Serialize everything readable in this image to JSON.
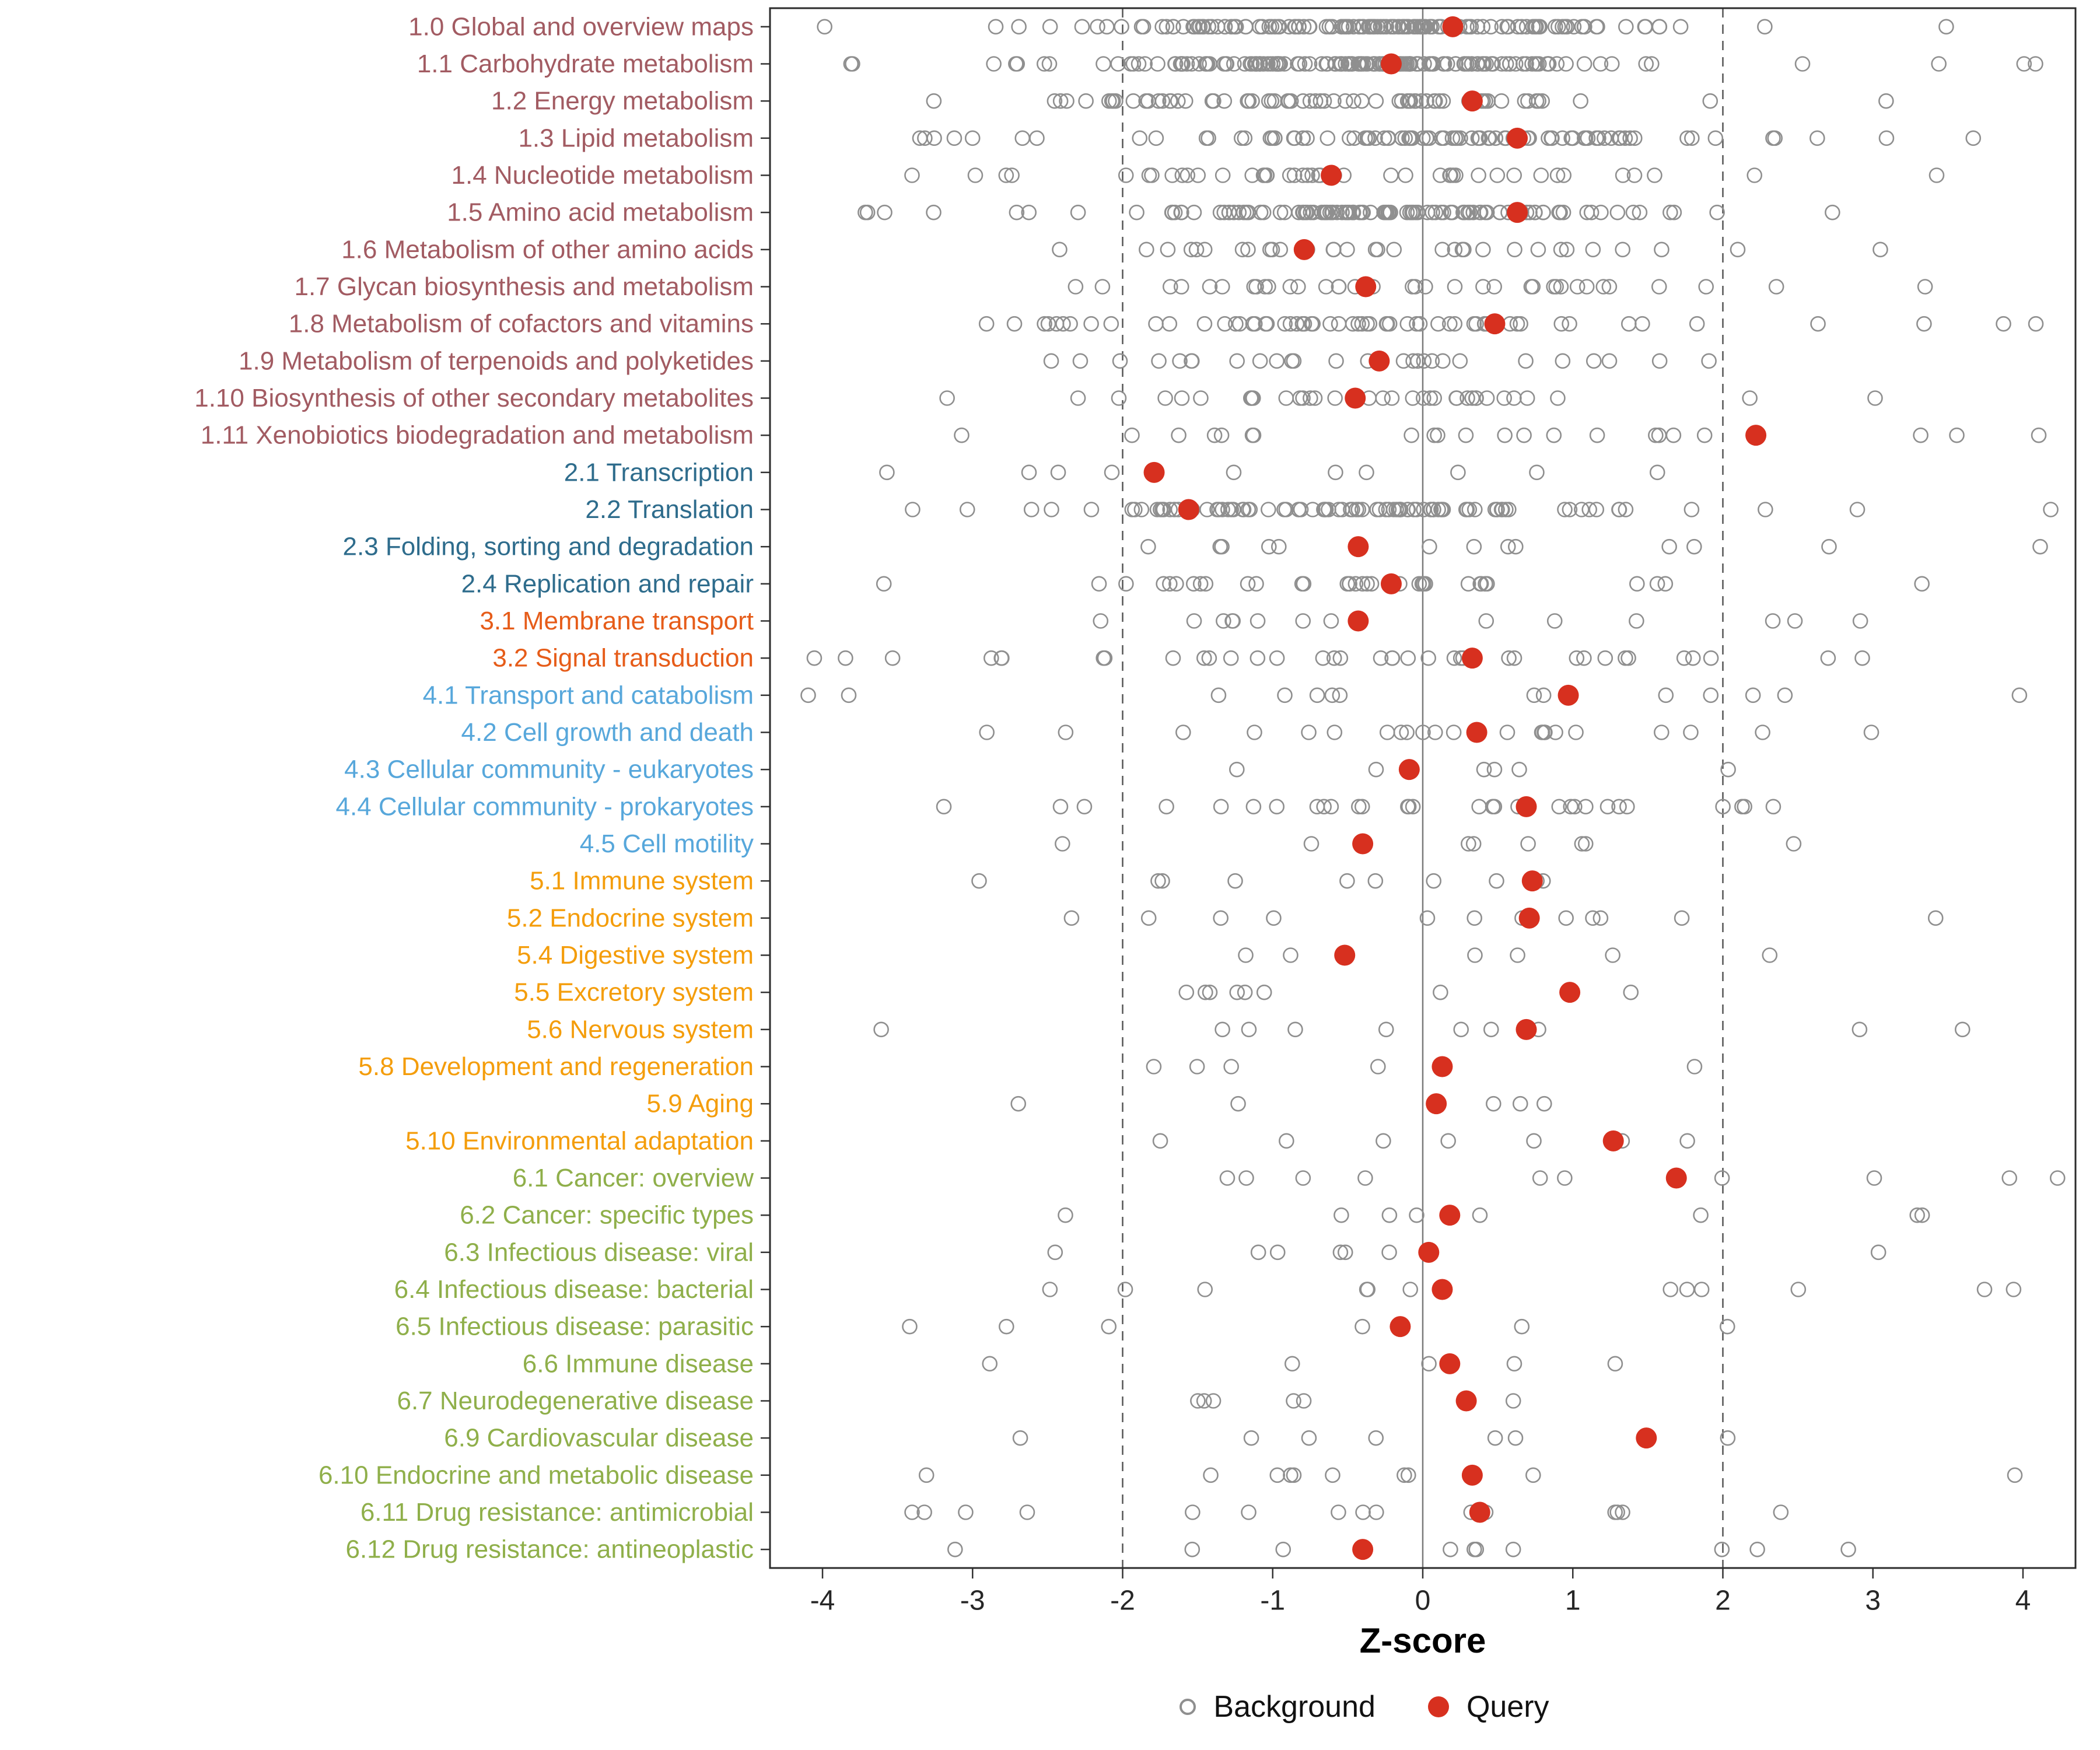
{
  "colors": {
    "query": "#D7301F",
    "background": "#8F8F8F",
    "axis_text": "#262626",
    "panel_border": "#2b2b2b",
    "ref_line": "#555555",
    "zero_line": "#7a7a7a"
  },
  "chart_data": {
    "type": "scatter",
    "title": "",
    "xlabel": "Z-score",
    "xlim": [
      -4.35,
      4.35
    ],
    "x_ticks": [
      -4,
      -3,
      -2,
      -1,
      0,
      1,
      2,
      3,
      4
    ],
    "grid": false,
    "reference_lines": {
      "solid_x": 0,
      "dashed_x": [
        -2,
        2
      ]
    },
    "legend_position": "bottom",
    "legend": {
      "background": "Background",
      "query": "Query"
    },
    "group_colors": {
      "metabolism": "#A25B62",
      "genetic-information-processing": "#2E6C8C",
      "environmental-information-processing": "#E65C19",
      "cellular-processes": "#57A7DB",
      "organismal-systems": "#F49D0B",
      "human-diseases": "#8FAF4A"
    },
    "rows": [
      {
        "label": "1.0 Global and overview maps",
        "group": "metabolism",
        "query": 0.2,
        "background": {
          "n": 140,
          "center": -0.3,
          "sd": 1.0,
          "tail": 0.1
        }
      },
      {
        "label": "1.1 Carbohydrate metabolism",
        "group": "metabolism",
        "query": -0.21,
        "background": {
          "n": 160,
          "center": -0.45,
          "sd": 0.95,
          "tail": 0.08
        }
      },
      {
        "label": "1.2 Energy metabolism",
        "group": "metabolism",
        "query": 0.33,
        "background": {
          "n": 70,
          "center": -0.5,
          "sd": 1.0,
          "tail": 0.12
        }
      },
      {
        "label": "1.3 Lipid metabolism",
        "group": "metabolism",
        "query": 0.63,
        "background": {
          "n": 95,
          "center": 0.0,
          "sd": 1.1,
          "tail": 0.12
        }
      },
      {
        "label": "1.4 Nucleotide metabolism",
        "group": "metabolism",
        "query": -0.61,
        "background": {
          "n": 45,
          "center": -0.5,
          "sd": 1.1,
          "tail": 0.15
        }
      },
      {
        "label": "1.5 Amino acid metabolism",
        "group": "metabolism",
        "query": 0.63,
        "background": {
          "n": 115,
          "center": 0.0,
          "sd": 0.95,
          "tail": 0.1
        }
      },
      {
        "label": "1.6 Metabolism of other amino acids",
        "group": "metabolism",
        "query": -0.79,
        "background": {
          "n": 32,
          "center": -0.2,
          "sd": 1.1,
          "tail": 0.15
        }
      },
      {
        "label": "1.7 Glycan biosynthesis and metabolism",
        "group": "metabolism",
        "query": -0.38,
        "background": {
          "n": 36,
          "center": -0.3,
          "sd": 1.2,
          "tail": 0.18
        }
      },
      {
        "label": "1.8 Metabolism of cofactors and vitamins",
        "group": "metabolism",
        "query": 0.48,
        "background": {
          "n": 60,
          "center": -0.5,
          "sd": 1.2,
          "tail": 0.15
        }
      },
      {
        "label": "1.9 Metabolism of terpenoids and polyketides",
        "group": "metabolism",
        "query": -0.29,
        "background": {
          "n": 28,
          "center": -0.3,
          "sd": 1.2,
          "tail": 0.18
        }
      },
      {
        "label": "1.10 Biosynthesis of other secondary metabolites",
        "group": "metabolism",
        "query": -0.45,
        "background": {
          "n": 36,
          "center": -0.3,
          "sd": 1.0,
          "tail": 0.15
        }
      },
      {
        "label": "1.11 Xenobiotics biodegradation and metabolism",
        "group": "metabolism",
        "query": 2.22,
        "background": {
          "n": 22,
          "center": -0.2,
          "sd": 1.3,
          "tail": 0.2
        }
      },
      {
        "label": "2.1 Transcription",
        "group": "genetic-information-processing",
        "query": -1.79,
        "background": {
          "n": 10,
          "center": -0.4,
          "sd": 1.3,
          "tail": 0.2
        }
      },
      {
        "label": "2.2 Translation",
        "group": "genetic-information-processing",
        "query": -1.56,
        "background": {
          "n": 95,
          "center": -0.5,
          "sd": 0.9,
          "tail": 0.08
        }
      },
      {
        "label": "2.3 Folding, sorting and degradation",
        "group": "genetic-information-processing",
        "query": -0.43,
        "background": {
          "n": 14,
          "center": -0.3,
          "sd": 1.3,
          "tail": 0.2
        }
      },
      {
        "label": "2.4 Replication and repair",
        "group": "genetic-information-processing",
        "query": -0.21,
        "background": {
          "n": 34,
          "center": -0.5,
          "sd": 1.1,
          "tail": 0.15
        }
      },
      {
        "label": "3.1 Membrane transport",
        "group": "environmental-information-processing",
        "query": -0.43,
        "background": {
          "n": 14,
          "center": -0.3,
          "sd": 1.4,
          "tail": 0.2
        }
      },
      {
        "label": "3.2 Signal transduction",
        "group": "environmental-information-processing",
        "query": 0.33,
        "background": {
          "n": 38,
          "center": -0.3,
          "sd": 1.5,
          "tail": 0.25
        }
      },
      {
        "label": "4.1 Transport and catabolism",
        "group": "cellular-processes",
        "query": 0.97,
        "background": {
          "n": 14,
          "center": -0.2,
          "sd": 1.3,
          "tail": 0.2
        }
      },
      {
        "label": "4.2 Cell growth and death",
        "group": "cellular-processes",
        "query": 0.36,
        "background": {
          "n": 24,
          "center": -0.3,
          "sd": 1.3,
          "tail": 0.2
        }
      },
      {
        "label": "4.3 Cellular community - eukaryotes",
        "group": "cellular-processes",
        "query": -0.09,
        "background": {
          "n": 6,
          "center": 0.0,
          "sd": 1.0,
          "tail": 0.2
        }
      },
      {
        "label": "4.4 Cellular community - prokaryotes",
        "group": "cellular-processes",
        "query": 0.69,
        "background": {
          "n": 30,
          "center": -0.3,
          "sd": 1.4,
          "tail": 0.2
        }
      },
      {
        "label": "4.5 Cell motility",
        "group": "cellular-processes",
        "query": -0.4,
        "background": {
          "n": 8,
          "center": -0.2,
          "sd": 1.2,
          "tail": 0.2
        }
      },
      {
        "label": "5.1 Immune system",
        "group": "organismal-systems",
        "query": 0.73,
        "background": {
          "n": 10,
          "center": -0.2,
          "sd": 1.5,
          "tail": 0.3
        }
      },
      {
        "label": "5.2 Endocrine system",
        "group": "organismal-systems",
        "query": 0.71,
        "background": {
          "n": 12,
          "center": -0.2,
          "sd": 1.6,
          "tail": 0.3
        }
      },
      {
        "label": "5.4 Digestive system",
        "group": "organismal-systems",
        "query": -0.52,
        "background": {
          "n": 6,
          "center": -0.2,
          "sd": 1.4,
          "tail": 0.3
        }
      },
      {
        "label": "5.5 Excretory system",
        "group": "organismal-systems",
        "query": 0.98,
        "background": {
          "n": 8,
          "center": -0.2,
          "sd": 1.3,
          "tail": 0.3
        }
      },
      {
        "label": "5.6 Nervous system",
        "group": "organismal-systems",
        "query": 0.69,
        "background": {
          "n": 10,
          "center": -0.2,
          "sd": 1.5,
          "tail": 0.3
        }
      },
      {
        "label": "5.8 Development and regeneration",
        "group": "organismal-systems",
        "query": 0.13,
        "background": {
          "n": 5,
          "center": -0.2,
          "sd": 1.3,
          "tail": 0.3
        }
      },
      {
        "label": "5.9 Aging",
        "group": "organismal-systems",
        "query": 0.09,
        "background": {
          "n": 5,
          "center": -0.2,
          "sd": 1.4,
          "tail": 0.3
        }
      },
      {
        "label": "5.10 Environmental adaptation",
        "group": "organismal-systems",
        "query": 1.27,
        "background": {
          "n": 7,
          "center": -0.2,
          "sd": 1.5,
          "tail": 0.3
        }
      },
      {
        "label": "6.1 Cancer: overview",
        "group": "human-diseases",
        "query": 1.69,
        "background": {
          "n": 10,
          "center": -0.2,
          "sd": 1.6,
          "tail": 0.3
        }
      },
      {
        "label": "6.2 Cancer: specific types",
        "group": "human-diseases",
        "query": 0.18,
        "background": {
          "n": 8,
          "center": -0.2,
          "sd": 1.5,
          "tail": 0.3
        }
      },
      {
        "label": "6.3 Infectious disease: viral",
        "group": "human-diseases",
        "query": 0.04,
        "background": {
          "n": 7,
          "center": -0.2,
          "sd": 1.3,
          "tail": 0.3
        }
      },
      {
        "label": "6.4 Infectious disease: bacterial",
        "group": "human-diseases",
        "query": 0.13,
        "background": {
          "n": 12,
          "center": -0.2,
          "sd": 1.6,
          "tail": 0.3
        }
      },
      {
        "label": "6.5 Infectious disease: parasitic",
        "group": "human-diseases",
        "query": -0.15,
        "background": {
          "n": 6,
          "center": -0.3,
          "sd": 1.3,
          "tail": 0.3
        }
      },
      {
        "label": "6.6 Immune disease",
        "group": "human-diseases",
        "query": 0.18,
        "background": {
          "n": 5,
          "center": -0.2,
          "sd": 1.4,
          "tail": 0.3
        }
      },
      {
        "label": "6.7 Neurodegenerative disease",
        "group": "human-diseases",
        "query": 0.29,
        "background": {
          "n": 6,
          "center": -0.2,
          "sd": 1.5,
          "tail": 0.3
        }
      },
      {
        "label": "6.9 Cardiovascular disease",
        "group": "human-diseases",
        "query": 1.49,
        "background": {
          "n": 7,
          "center": -0.3,
          "sd": 1.6,
          "tail": 0.3
        }
      },
      {
        "label": "6.10 Endocrine and metabolic disease",
        "group": "human-diseases",
        "query": 0.33,
        "background": {
          "n": 10,
          "center": -0.2,
          "sd": 1.4,
          "tail": 0.3
        }
      },
      {
        "label": "6.11 Drug resistance: antimicrobial",
        "group": "human-diseases",
        "query": 0.38,
        "background": {
          "n": 15,
          "center": -0.3,
          "sd": 1.3,
          "tail": 0.25
        }
      },
      {
        "label": "6.12 Drug resistance: antineoplastic",
        "group": "human-diseases",
        "query": -0.4,
        "background": {
          "n": 10,
          "center": -0.3,
          "sd": 1.4,
          "tail": 0.3
        }
      }
    ]
  }
}
